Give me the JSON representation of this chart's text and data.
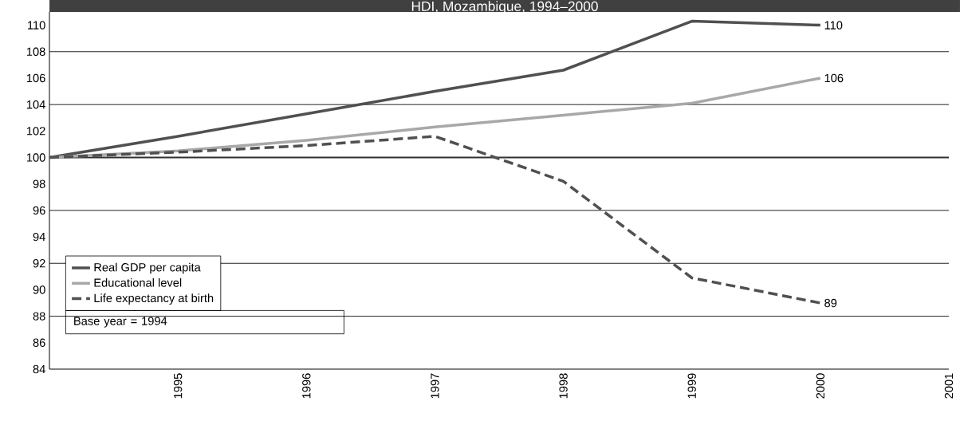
{
  "chart_data": {
    "type": "line",
    "title": "HDI, Mozambique, 1994–2000",
    "x": [
      1994,
      1995,
      1996,
      1997,
      1998,
      1999,
      2000
    ],
    "series": [
      {
        "name": "Real GDP per capita",
        "color": "#505050",
        "line_style": "solid",
        "values": [
          100,
          101.6,
          103.3,
          105.0,
          106.6,
          110.3,
          110
        ],
        "value_labels": [
          null,
          null,
          null,
          null,
          null,
          null,
          "110"
        ]
      },
      {
        "name": "Educational level",
        "color": "#a8a8a8",
        "line_style": "solid",
        "values": [
          100,
          100.5,
          101.3,
          102.3,
          103.2,
          104.1,
          106
        ],
        "value_labels": [
          null,
          null,
          null,
          null,
          null,
          null,
          "106"
        ]
      },
      {
        "name": "Life expectancy at birth",
        "color": "#505050",
        "line_style": "dashed",
        "values": [
          100,
          100.4,
          100.9,
          101.6,
          98.2,
          90.9,
          89
        ],
        "value_labels": [
          null,
          null,
          null,
          null,
          null,
          null,
          "89"
        ]
      }
    ],
    "xlim": [
      1994,
      2001
    ],
    "xticks": [
      1995,
      1996,
      1997,
      1998,
      1999,
      2000,
      2001
    ],
    "ylim": [
      84,
      111
    ],
    "yticks": [
      84,
      86,
      88,
      90,
      92,
      94,
      96,
      98,
      100,
      102,
      104,
      106,
      108,
      110
    ],
    "ref_lines": [
      {
        "axis": "y",
        "value": 88
      },
      {
        "axis": "y",
        "value": 92
      },
      {
        "axis": "y",
        "value": 96
      },
      {
        "axis": "y",
        "value": 100,
        "color": "#303030"
      },
      {
        "axis": "y",
        "value": 104
      },
      {
        "axis": "y",
        "value": 108
      }
    ],
    "legend": "bottom left",
    "marker": "none",
    "grid": false,
    "annotations": [
      "Base year = 1994"
    ]
  }
}
